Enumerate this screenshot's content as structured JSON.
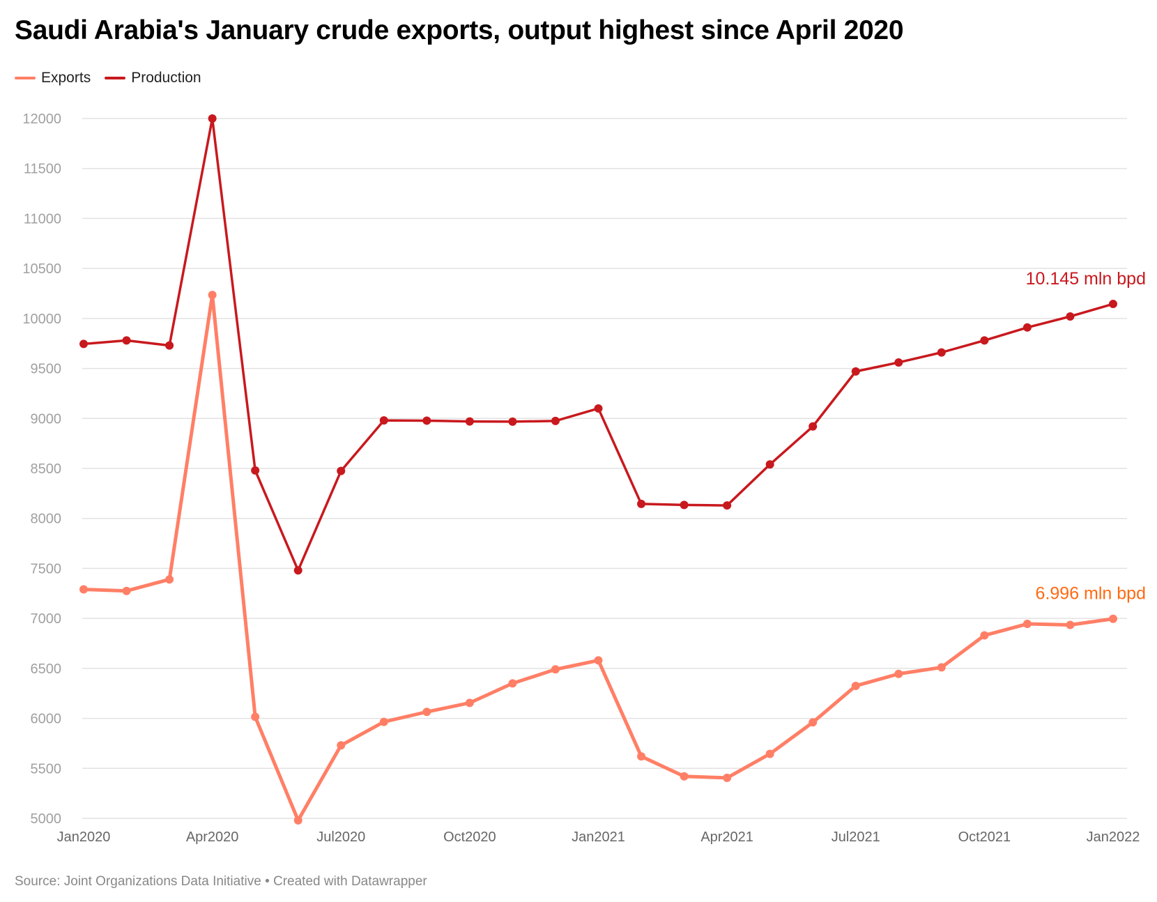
{
  "chart_data": {
    "type": "line",
    "title": "Saudi Arabia's January crude exports, output highest since April 2020",
    "source": "Source: Joint Organizations Data Initiative • Created with Datawrapper",
    "x": [
      "Jan2020",
      "Feb2020",
      "Mar2020",
      "Apr2020",
      "May2020",
      "Jun2020",
      "Jul2020",
      "Aug2020",
      "Sep2020",
      "Oct2020",
      "Nov2020",
      "Dec2020",
      "Jan2021",
      "Feb2021",
      "Mar2021",
      "Apr2021",
      "May2021",
      "Jun2021",
      "Jul2021",
      "Aug2021",
      "Sep2021",
      "Oct2021",
      "Nov2021",
      "Dec2021",
      "Jan2022"
    ],
    "x_tick_labels": [
      "Jan2020",
      "Apr2020",
      "Jul2020",
      "Oct2020",
      "Jan2021",
      "Apr2021",
      "Jul2021",
      "Oct2021",
      "Jan2022"
    ],
    "y_ticks": [
      5000,
      5500,
      6000,
      6500,
      7000,
      7500,
      8000,
      8500,
      9000,
      9500,
      10000,
      10500,
      11000,
      11500,
      12000
    ],
    "ylim": [
      5000,
      12000
    ],
    "grid": true,
    "legend": "top-left",
    "series": [
      {
        "name": "Exports",
        "color": "#ff7f66",
        "values": [
          7290,
          7275,
          7390,
          10235,
          6015,
          4980,
          5730,
          5965,
          6065,
          6155,
          6350,
          6490,
          6580,
          5620,
          5420,
          5405,
          5645,
          5960,
          6325,
          6445,
          6510,
          6830,
          6945,
          6935,
          6996
        ],
        "annotation": {
          "text": "6.996 mln bpd",
          "color": "#ff6a13"
        }
      },
      {
        "name": "Production",
        "color": "#c8191e",
        "values": [
          9745,
          9780,
          9730,
          12000,
          8480,
          7480,
          8475,
          8980,
          8978,
          8970,
          8968,
          8975,
          9100,
          8145,
          8135,
          8130,
          8540,
          8920,
          9470,
          9560,
          9660,
          9780,
          9910,
          10020,
          10145
        ],
        "annotation": {
          "text": "10.145 mln bpd",
          "color": "#c8191e"
        }
      }
    ]
  }
}
